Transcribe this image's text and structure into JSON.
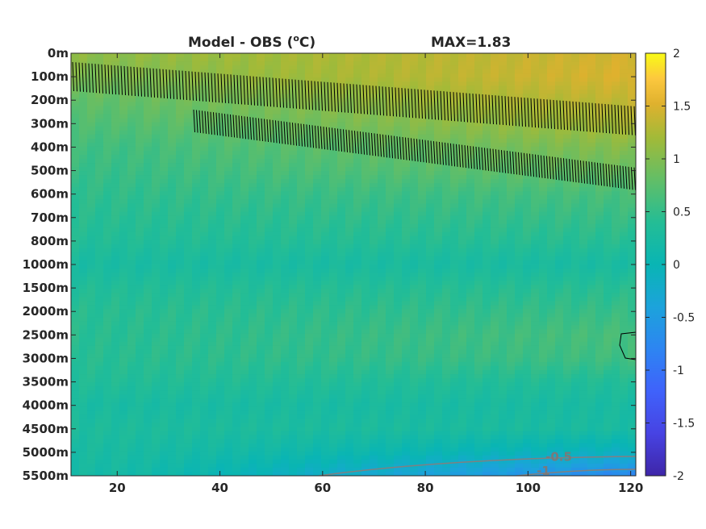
{
  "chart_data": {
    "type": "heatmap",
    "title": "Model - OBS (",
    "title_sup": "o",
    "title_unit": "C)",
    "max_label": "MAX=1.83",
    "x_ticks": [
      20,
      40,
      60,
      80,
      100,
      120
    ],
    "xlim": [
      11,
      121
    ],
    "y_tick_labels": [
      "0m",
      "100m",
      "200m",
      "300m",
      "400m",
      "500m",
      "600m",
      "700m",
      "800m",
      "1000m",
      "1500m",
      "2000m",
      "2500m",
      "3000m",
      "3500m",
      "4000m",
      "4500m",
      "5000m",
      "5500m"
    ],
    "colorbar": {
      "min": -2,
      "max": 2,
      "ticks": [
        "2",
        "1.5",
        "1",
        "0.5",
        "0",
        "-0.5",
        "-1",
        "-1.5",
        "-2"
      ]
    },
    "colormap": [
      "#3e26a8",
      "#4743e3",
      "#3f62fb",
      "#2d85f2",
      "#1ca3db",
      "#09b5b4",
      "#24bd95",
      "#62be67",
      "#a2ba38",
      "#dfb12e",
      "#fcc83e",
      "#f9fb15"
    ],
    "profile": {
      "depth_index": [
        0,
        1,
        2,
        3,
        4,
        5,
        6,
        7,
        8,
        9,
        10,
        11,
        12,
        13,
        14,
        15,
        16,
        17,
        18
      ],
      "value_at_x20": [
        0.8,
        0.7,
        0.55,
        0.45,
        0.35,
        0.3,
        0.25,
        0.2,
        0.15,
        0.05,
        0.15,
        0.2,
        0.2,
        0.2,
        0.15,
        0.05,
        0.1,
        0.05,
        0.0
      ],
      "value_at_x120": [
        1.2,
        1.25,
        1.1,
        0.95,
        0.75,
        0.6,
        0.4,
        0.3,
        0.2,
        0.05,
        0.2,
        0.3,
        0.4,
        0.35,
        0.15,
        0.05,
        0.05,
        -0.3,
        -0.9
      ]
    },
    "contour_labels": [
      {
        "text": "-0.5",
        "x": 106,
        "y": 17.2
      },
      {
        "text": "-1",
        "x": 103,
        "y": 17.8
      }
    ]
  }
}
